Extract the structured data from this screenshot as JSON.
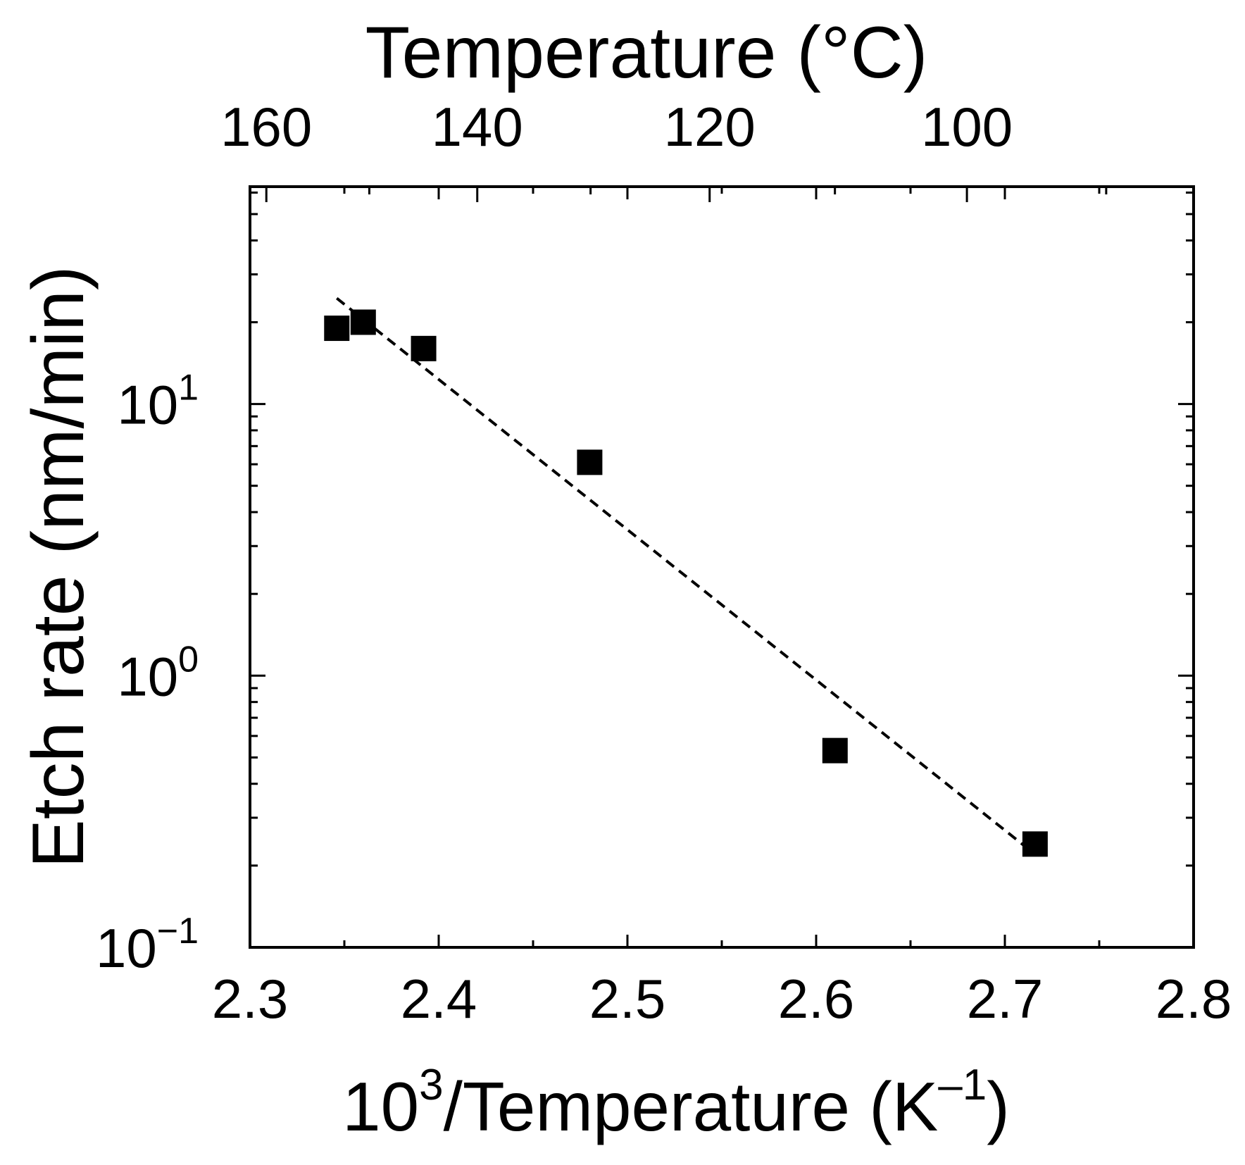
{
  "chart_data": {
    "type": "scatter",
    "title": "",
    "xlabel": "10³/Temperature (K⁻¹)",
    "xlabel_main": "10",
    "xlabel_sup": "3",
    "xlabel_mid": "/Temperature (K",
    "xlabel_sup2": "–1",
    "xlabel_end": ")",
    "ylabel": "Etch rate (nm/min)",
    "top_xlabel": "Temperature (°C)",
    "xlim": [
      2.3,
      2.8
    ],
    "ylim_log10": [
      -1,
      1.8
    ],
    "x_ticks": [
      "2.3",
      "2.4",
      "2.5",
      "2.6",
      "2.7",
      "2.8"
    ],
    "x_tick_values": [
      2.3,
      2.4,
      2.5,
      2.6,
      2.7,
      2.8
    ],
    "top_ticks": [
      "160",
      "140",
      "120",
      "100"
    ],
    "top_tick_celsius": [
      160,
      140,
      120,
      100
    ],
    "y_ticks": [
      {
        "base": "10",
        "exp": "1",
        "value": 10
      },
      {
        "base": "10",
        "exp": "0",
        "value": 1
      },
      {
        "base": "10",
        "exp": "−1",
        "value": 0.1
      }
    ],
    "series": [
      {
        "name": "Etch rate",
        "marker": "square",
        "x": [
          2.346,
          2.36,
          2.392,
          2.48,
          2.61,
          2.716
        ],
        "y": [
          19.0,
          20.0,
          16.0,
          6.1,
          0.53,
          0.24
        ]
      }
    ],
    "fit_line": {
      "style": "dashed",
      "x": [
        2.346,
        2.716
      ],
      "y": [
        24.5,
        0.22
      ]
    },
    "grid": false
  }
}
